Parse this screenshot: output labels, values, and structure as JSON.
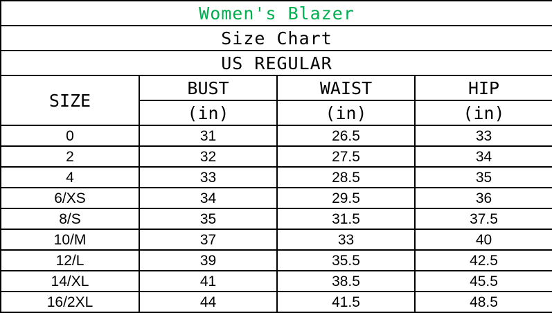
{
  "title": "Women's Blazer",
  "subtitle": "Size Chart",
  "region": "US REGULAR",
  "colors": {
    "title": "#00b050",
    "border": "#000000"
  },
  "headers": {
    "size": "SIZE",
    "bust": "BUST",
    "waist": "WAIST",
    "hip": "HIP",
    "unit": "(in)"
  },
  "rows": [
    {
      "size": "0",
      "bust": "31",
      "waist": "26.5",
      "hip": "33"
    },
    {
      "size": "2",
      "bust": "32",
      "waist": "27.5",
      "hip": "34"
    },
    {
      "size": "4",
      "bust": "33",
      "waist": "28.5",
      "hip": "35"
    },
    {
      "size": "6/XS",
      "bust": "34",
      "waist": "29.5",
      "hip": "36"
    },
    {
      "size": "8/S",
      "bust": "35",
      "waist": "31.5",
      "hip": "37.5"
    },
    {
      "size": "10/M",
      "bust": "37",
      "waist": "33",
      "hip": "40"
    },
    {
      "size": "12/L",
      "bust": "39",
      "waist": "35.5",
      "hip": "42.5"
    },
    {
      "size": "14/XL",
      "bust": "41",
      "waist": "38.5",
      "hip": "45.5"
    },
    {
      "size": "16/2XL",
      "bust": "44",
      "waist": "41.5",
      "hip": "48.5"
    }
  ]
}
